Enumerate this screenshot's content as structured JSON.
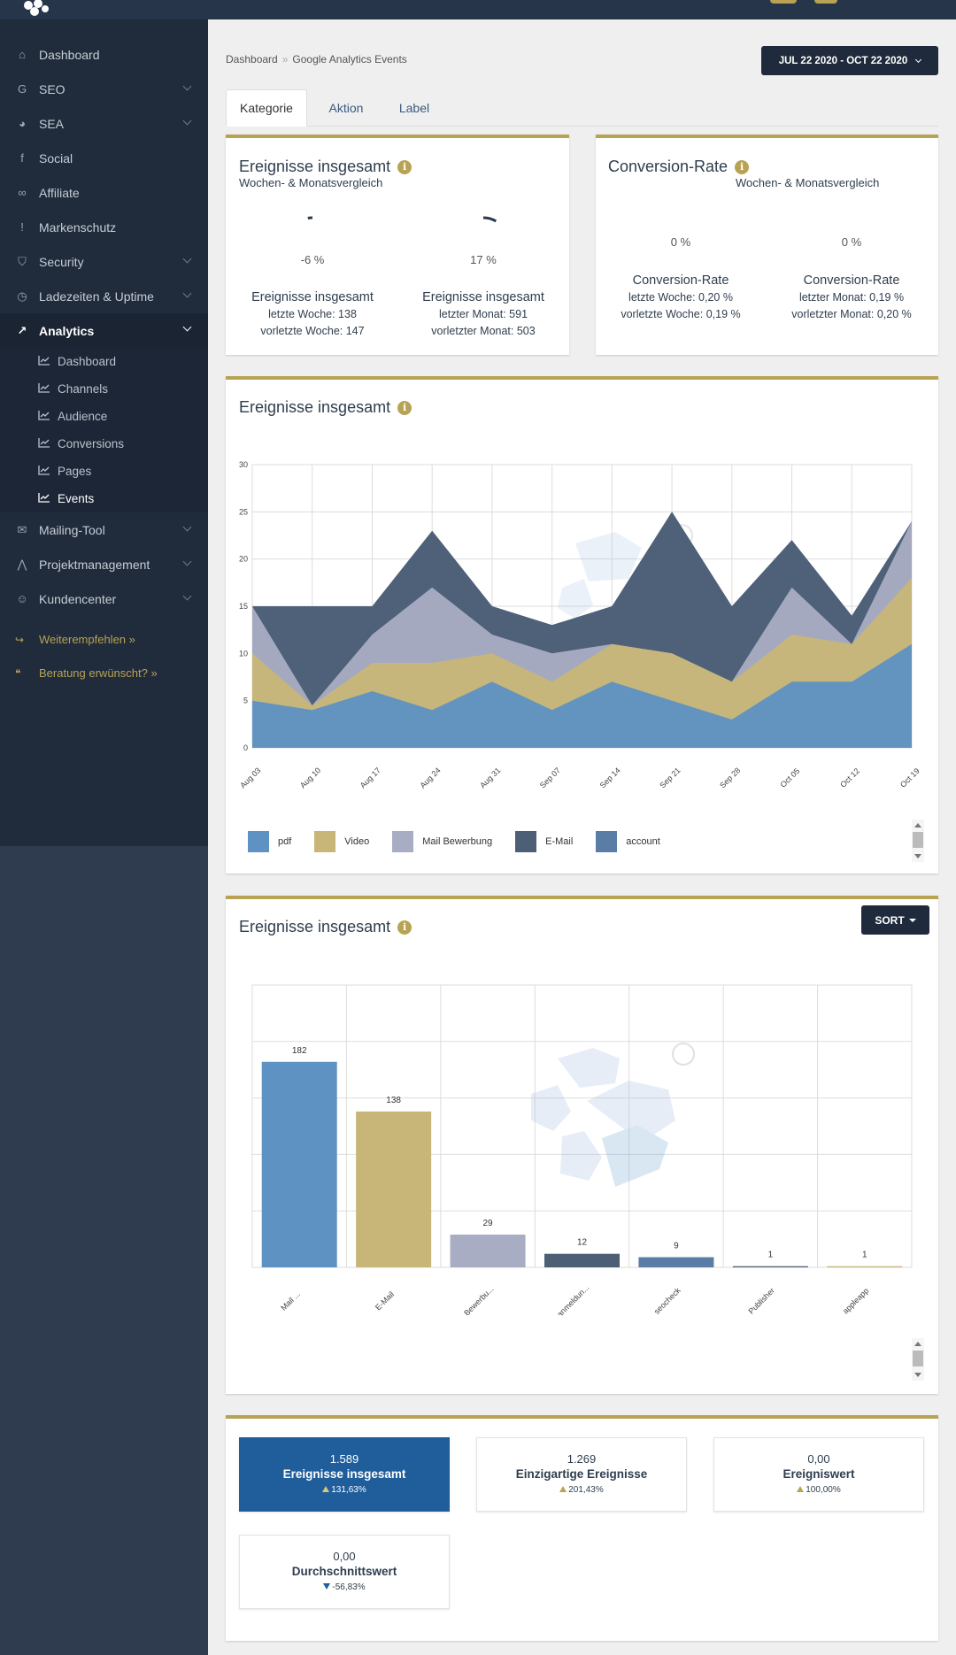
{
  "nav": {
    "items": [
      {
        "label": "Dashboard",
        "icon": "home-icon",
        "chevron": false
      },
      {
        "label": "SEO",
        "icon": "google-icon",
        "chevron": true
      },
      {
        "label": "SEA",
        "icon": "pie-chart-icon",
        "chevron": true
      },
      {
        "label": "Social",
        "icon": "facebook-icon",
        "chevron": false
      },
      {
        "label": "Affiliate",
        "icon": "handshake-icon",
        "chevron": false
      },
      {
        "label": "Markenschutz",
        "icon": "exclamation-icon",
        "chevron": false
      },
      {
        "label": "Security",
        "icon": "shield-icon",
        "chevron": true
      },
      {
        "label": "Ladezeiten & Uptime",
        "icon": "clock-icon",
        "chevron": true
      },
      {
        "label": "Analytics",
        "icon": "line-chart-icon",
        "chevron": true,
        "active": true
      }
    ],
    "analytics_sub": [
      {
        "label": "Dashboard"
      },
      {
        "label": "Channels"
      },
      {
        "label": "Audience"
      },
      {
        "label": "Conversions"
      },
      {
        "label": "Pages"
      },
      {
        "label": "Events",
        "active": true
      }
    ],
    "items_after": [
      {
        "label": "Mailing-Tool",
        "icon": "envelope-icon",
        "chevron": true
      },
      {
        "label": "Projektmanagement",
        "icon": "road-icon",
        "chevron": true
      },
      {
        "label": "Kundencenter",
        "icon": "users-icon",
        "chevron": true
      }
    ],
    "links": [
      {
        "label": "Weiterempfehlen »",
        "icon": "share-icon"
      },
      {
        "label": "Beratung erwünscht? »",
        "icon": "comments-icon"
      }
    ]
  },
  "breadcrumb": {
    "home": "Dashboard",
    "current": "Google Analytics Events"
  },
  "date_range": "JUL 22 2020 - OCT 22 2020",
  "tabs": [
    "Kategorie",
    "Aktion",
    "Label"
  ],
  "events_summary": {
    "title": "Ereignisse insgesamt",
    "subtitle": "Wochen- & Monatsvergleich",
    "week": {
      "pct": "-6 %",
      "name": "Ereignisse insgesamt",
      "line1": "letzte Woche: 138",
      "line2": "vorletzte Woche: 147",
      "gauge_fraction": -0.06
    },
    "month": {
      "pct": "17 %",
      "name": "Ereignisse insgesamt",
      "line1": "letzter Monat: 591",
      "line2": "vorletzter Monat: 503",
      "gauge_fraction": 0.17
    }
  },
  "conversion": {
    "title": "Conversion-Rate",
    "subtitle": "Wochen- & Monatsvergleich",
    "week": {
      "pct": "0 %",
      "name": "Conversion-Rate",
      "line1": "letzte Woche: 0,20 %",
      "line2": "vorletzte Woche: 0,19 %"
    },
    "month": {
      "pct": "0 %",
      "name": "Conversion-Rate",
      "line1": "letzter Monat: 0,19 %",
      "line2": "vorletzter Monat: 0,20 %"
    }
  },
  "area_card": {
    "title": "Ereignisse insgesamt"
  },
  "bar_card": {
    "title": "Ereignisse insgesamt",
    "sort_label": "SORT"
  },
  "chart_data": [
    {
      "type": "area",
      "stacked": false,
      "categories": [
        "Aug 03",
        "Aug 10",
        "Aug 17",
        "Aug 24",
        "Aug 31",
        "Sep 07",
        "Sep 14",
        "Sep 21",
        "Sep 28",
        "Oct 05",
        "Oct 12",
        "Oct 19"
      ],
      "ylim": [
        0,
        30
      ],
      "yticks": [
        0,
        5,
        10,
        15,
        20,
        25,
        30
      ],
      "grid": true,
      "legend_position": "bottom-left",
      "series": [
        {
          "name": "account",
          "color": "#5a7da6",
          "values": [
            15,
            15,
            15,
            23,
            15,
            13,
            15,
            25,
            15,
            22,
            14,
            24
          ]
        },
        {
          "name": "E-Mail",
          "color": "#4d5f75",
          "values": [
            15,
            15,
            15,
            23,
            15,
            13,
            15,
            25,
            15,
            22,
            14,
            24
          ]
        },
        {
          "name": "Mail Bewerbung",
          "color": "#a9adc3",
          "values": [
            15,
            4.5,
            12,
            17,
            12,
            10,
            11,
            10,
            7,
            17,
            11,
            24
          ]
        },
        {
          "name": "Video",
          "color": "#c8b678",
          "values": [
            10,
            4.5,
            9,
            9,
            10,
            7,
            11,
            10,
            7,
            12,
            11,
            18
          ]
        },
        {
          "name": "pdf",
          "color": "#5d92c3",
          "values": [
            5,
            4,
            6,
            4,
            7,
            4,
            7,
            5,
            3,
            7,
            7,
            11
          ]
        }
      ]
    },
    {
      "type": "bar",
      "categories": [
        "Mail ...",
        "E-Mail",
        "Bewerbu...",
        "anmeldun...",
        "seocheck",
        "Publisher",
        "appleapp"
      ],
      "values": [
        182,
        138,
        29,
        12,
        9,
        1,
        1
      ],
      "colors": [
        "#5d92c3",
        "#c8b678",
        "#a9adc3",
        "#4d5f75",
        "#5a7da6",
        "#4d5f75",
        "#c8b678"
      ],
      "ylim": [
        0,
        250
      ],
      "grid": true
    }
  ],
  "kpis": [
    {
      "value": "1.589",
      "name": "Ereignisse insgesamt",
      "change": "131,63%",
      "direction": "up",
      "primary": true
    },
    {
      "value": "1.269",
      "name": "Einzigartige Ereignisse",
      "change": "201,43%",
      "direction": "up"
    },
    {
      "value": "0,00",
      "name": "Ereigniswert",
      "change": "100,00%",
      "direction": "up"
    },
    {
      "value": "0,00",
      "name": "Durchschnittswert",
      "change": "-56,83%",
      "direction": "down"
    }
  ]
}
